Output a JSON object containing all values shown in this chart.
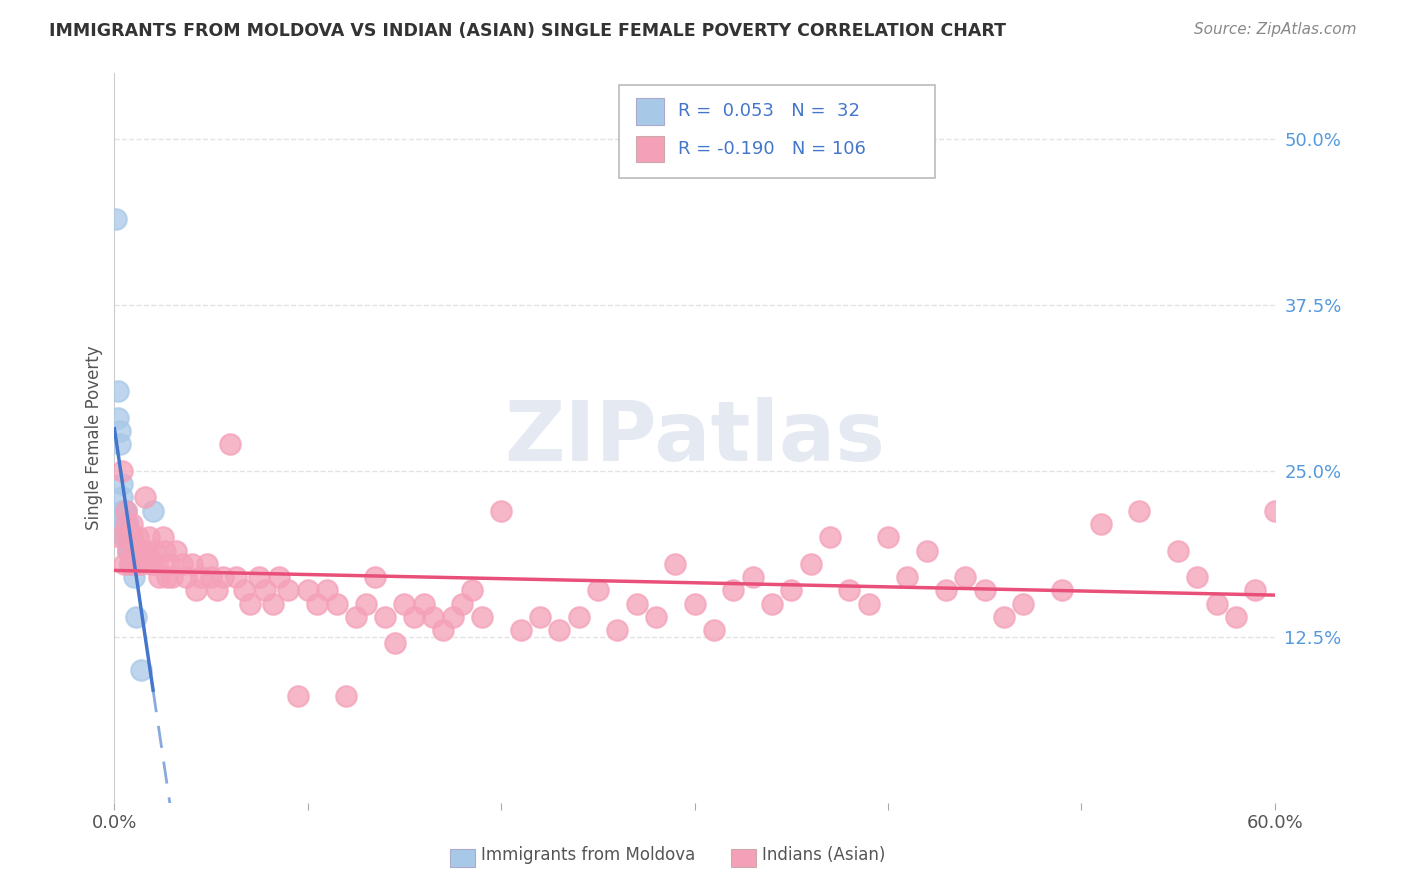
{
  "title": "IMMIGRANTS FROM MOLDOVA VS INDIAN (ASIAN) SINGLE FEMALE POVERTY CORRELATION CHART",
  "source": "Source: ZipAtlas.com",
  "ylabel": "Single Female Poverty",
  "legend_label1": "Immigrants from Moldova",
  "legend_label2": "Indians (Asian)",
  "color_moldova": "#a8c8e8",
  "color_indian": "#f4a0b8",
  "color_trend_moldova_solid": "#4477cc",
  "color_trend_moldova_dash": "#88aadd",
  "color_trend_indian": "#e8507a",
  "background_color": "#ffffff",
  "grid_color": "#dddddd",
  "xlim": [
    0.0,
    0.6
  ],
  "ylim": [
    0.0,
    0.55
  ],
  "ytick_values": [
    0.125,
    0.25,
    0.375,
    0.5
  ],
  "ytick_labels": [
    "12.5%",
    "25.0%",
    "37.5%",
    "50.0%"
  ],
  "xtick_values": [
    0.0,
    0.1,
    0.2,
    0.3,
    0.4,
    0.5,
    0.6
  ],
  "xtick_show": [
    "0.0%",
    "",
    "",
    "",
    "",
    "",
    "60.0%"
  ],
  "moldova_x": [
    0.001,
    0.002,
    0.002,
    0.003,
    0.003,
    0.004,
    0.004,
    0.004,
    0.005,
    0.005,
    0.005,
    0.005,
    0.006,
    0.006,
    0.006,
    0.006,
    0.006,
    0.007,
    0.007,
    0.007,
    0.007,
    0.007,
    0.008,
    0.008,
    0.008,
    0.008,
    0.009,
    0.009,
    0.01,
    0.011,
    0.014,
    0.02
  ],
  "moldova_y": [
    0.44,
    0.31,
    0.29,
    0.28,
    0.27,
    0.24,
    0.23,
    0.22,
    0.22,
    0.21,
    0.21,
    0.2,
    0.22,
    0.21,
    0.21,
    0.2,
    0.2,
    0.21,
    0.2,
    0.2,
    0.19,
    0.19,
    0.2,
    0.2,
    0.19,
    0.18,
    0.19,
    0.18,
    0.17,
    0.14,
    0.1,
    0.22
  ],
  "indian_x": [
    0.003,
    0.005,
    0.006,
    0.007,
    0.008,
    0.009,
    0.01,
    0.011,
    0.012,
    0.013,
    0.014,
    0.015,
    0.016,
    0.017,
    0.018,
    0.019,
    0.02,
    0.021,
    0.022,
    0.023,
    0.025,
    0.026,
    0.027,
    0.028,
    0.03,
    0.032,
    0.035,
    0.037,
    0.04,
    0.042,
    0.045,
    0.048,
    0.05,
    0.053,
    0.056,
    0.06,
    0.063,
    0.067,
    0.07,
    0.075,
    0.078,
    0.082,
    0.085,
    0.09,
    0.095,
    0.1,
    0.105,
    0.11,
    0.115,
    0.12,
    0.125,
    0.13,
    0.135,
    0.14,
    0.145,
    0.15,
    0.155,
    0.16,
    0.165,
    0.17,
    0.175,
    0.18,
    0.185,
    0.19,
    0.2,
    0.21,
    0.22,
    0.23,
    0.24,
    0.25,
    0.26,
    0.27,
    0.28,
    0.29,
    0.3,
    0.31,
    0.32,
    0.33,
    0.34,
    0.35,
    0.36,
    0.37,
    0.38,
    0.39,
    0.4,
    0.41,
    0.42,
    0.43,
    0.44,
    0.45,
    0.46,
    0.47,
    0.49,
    0.51,
    0.53,
    0.55,
    0.56,
    0.57,
    0.58,
    0.59,
    0.6,
    0.007,
    0.009,
    0.011,
    0.004,
    0.006
  ],
  "indian_y": [
    0.2,
    0.18,
    0.22,
    0.2,
    0.18,
    0.21,
    0.19,
    0.19,
    0.2,
    0.19,
    0.18,
    0.19,
    0.23,
    0.19,
    0.2,
    0.18,
    0.18,
    0.19,
    0.18,
    0.17,
    0.2,
    0.19,
    0.17,
    0.18,
    0.17,
    0.19,
    0.18,
    0.17,
    0.18,
    0.16,
    0.17,
    0.18,
    0.17,
    0.16,
    0.17,
    0.27,
    0.17,
    0.16,
    0.15,
    0.17,
    0.16,
    0.15,
    0.17,
    0.16,
    0.08,
    0.16,
    0.15,
    0.16,
    0.15,
    0.08,
    0.14,
    0.15,
    0.17,
    0.14,
    0.12,
    0.15,
    0.14,
    0.15,
    0.14,
    0.13,
    0.14,
    0.15,
    0.16,
    0.14,
    0.22,
    0.13,
    0.14,
    0.13,
    0.14,
    0.16,
    0.13,
    0.15,
    0.14,
    0.18,
    0.15,
    0.13,
    0.16,
    0.17,
    0.15,
    0.16,
    0.18,
    0.2,
    0.16,
    0.15,
    0.2,
    0.17,
    0.19,
    0.16,
    0.17,
    0.16,
    0.14,
    0.15,
    0.16,
    0.21,
    0.22,
    0.19,
    0.17,
    0.15,
    0.14,
    0.16,
    0.22,
    0.19,
    0.2,
    0.18,
    0.25,
    0.21
  ]
}
